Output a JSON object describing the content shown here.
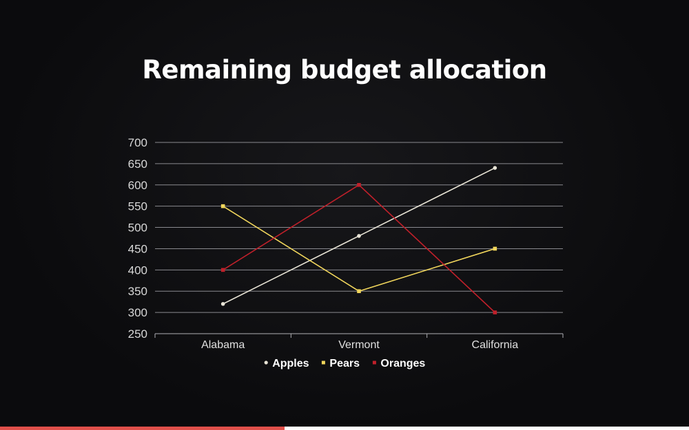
{
  "slide": {
    "progress": 0.413,
    "accent_color": "#e0504a"
  },
  "chart_data": {
    "type": "line",
    "title": "Remaining budget allocation",
    "categories": [
      "Alabama",
      "Vermont",
      "California"
    ],
    "ylim": [
      250,
      700
    ],
    "yticks": [
      250,
      300,
      350,
      400,
      450,
      500,
      550,
      600,
      650,
      700
    ],
    "grid": true,
    "legend": "bottom",
    "series": [
      {
        "name": "Apples",
        "values": [
          320,
          480,
          640
        ],
        "color": "#e8e4d6",
        "marker": "circle"
      },
      {
        "name": "Pears",
        "values": [
          550,
          350,
          450
        ],
        "color": "#f1d65c",
        "marker": "square"
      },
      {
        "name": "Oranges",
        "values": [
          400,
          600,
          300
        ],
        "color": "#c0202a",
        "marker": "square"
      }
    ]
  }
}
